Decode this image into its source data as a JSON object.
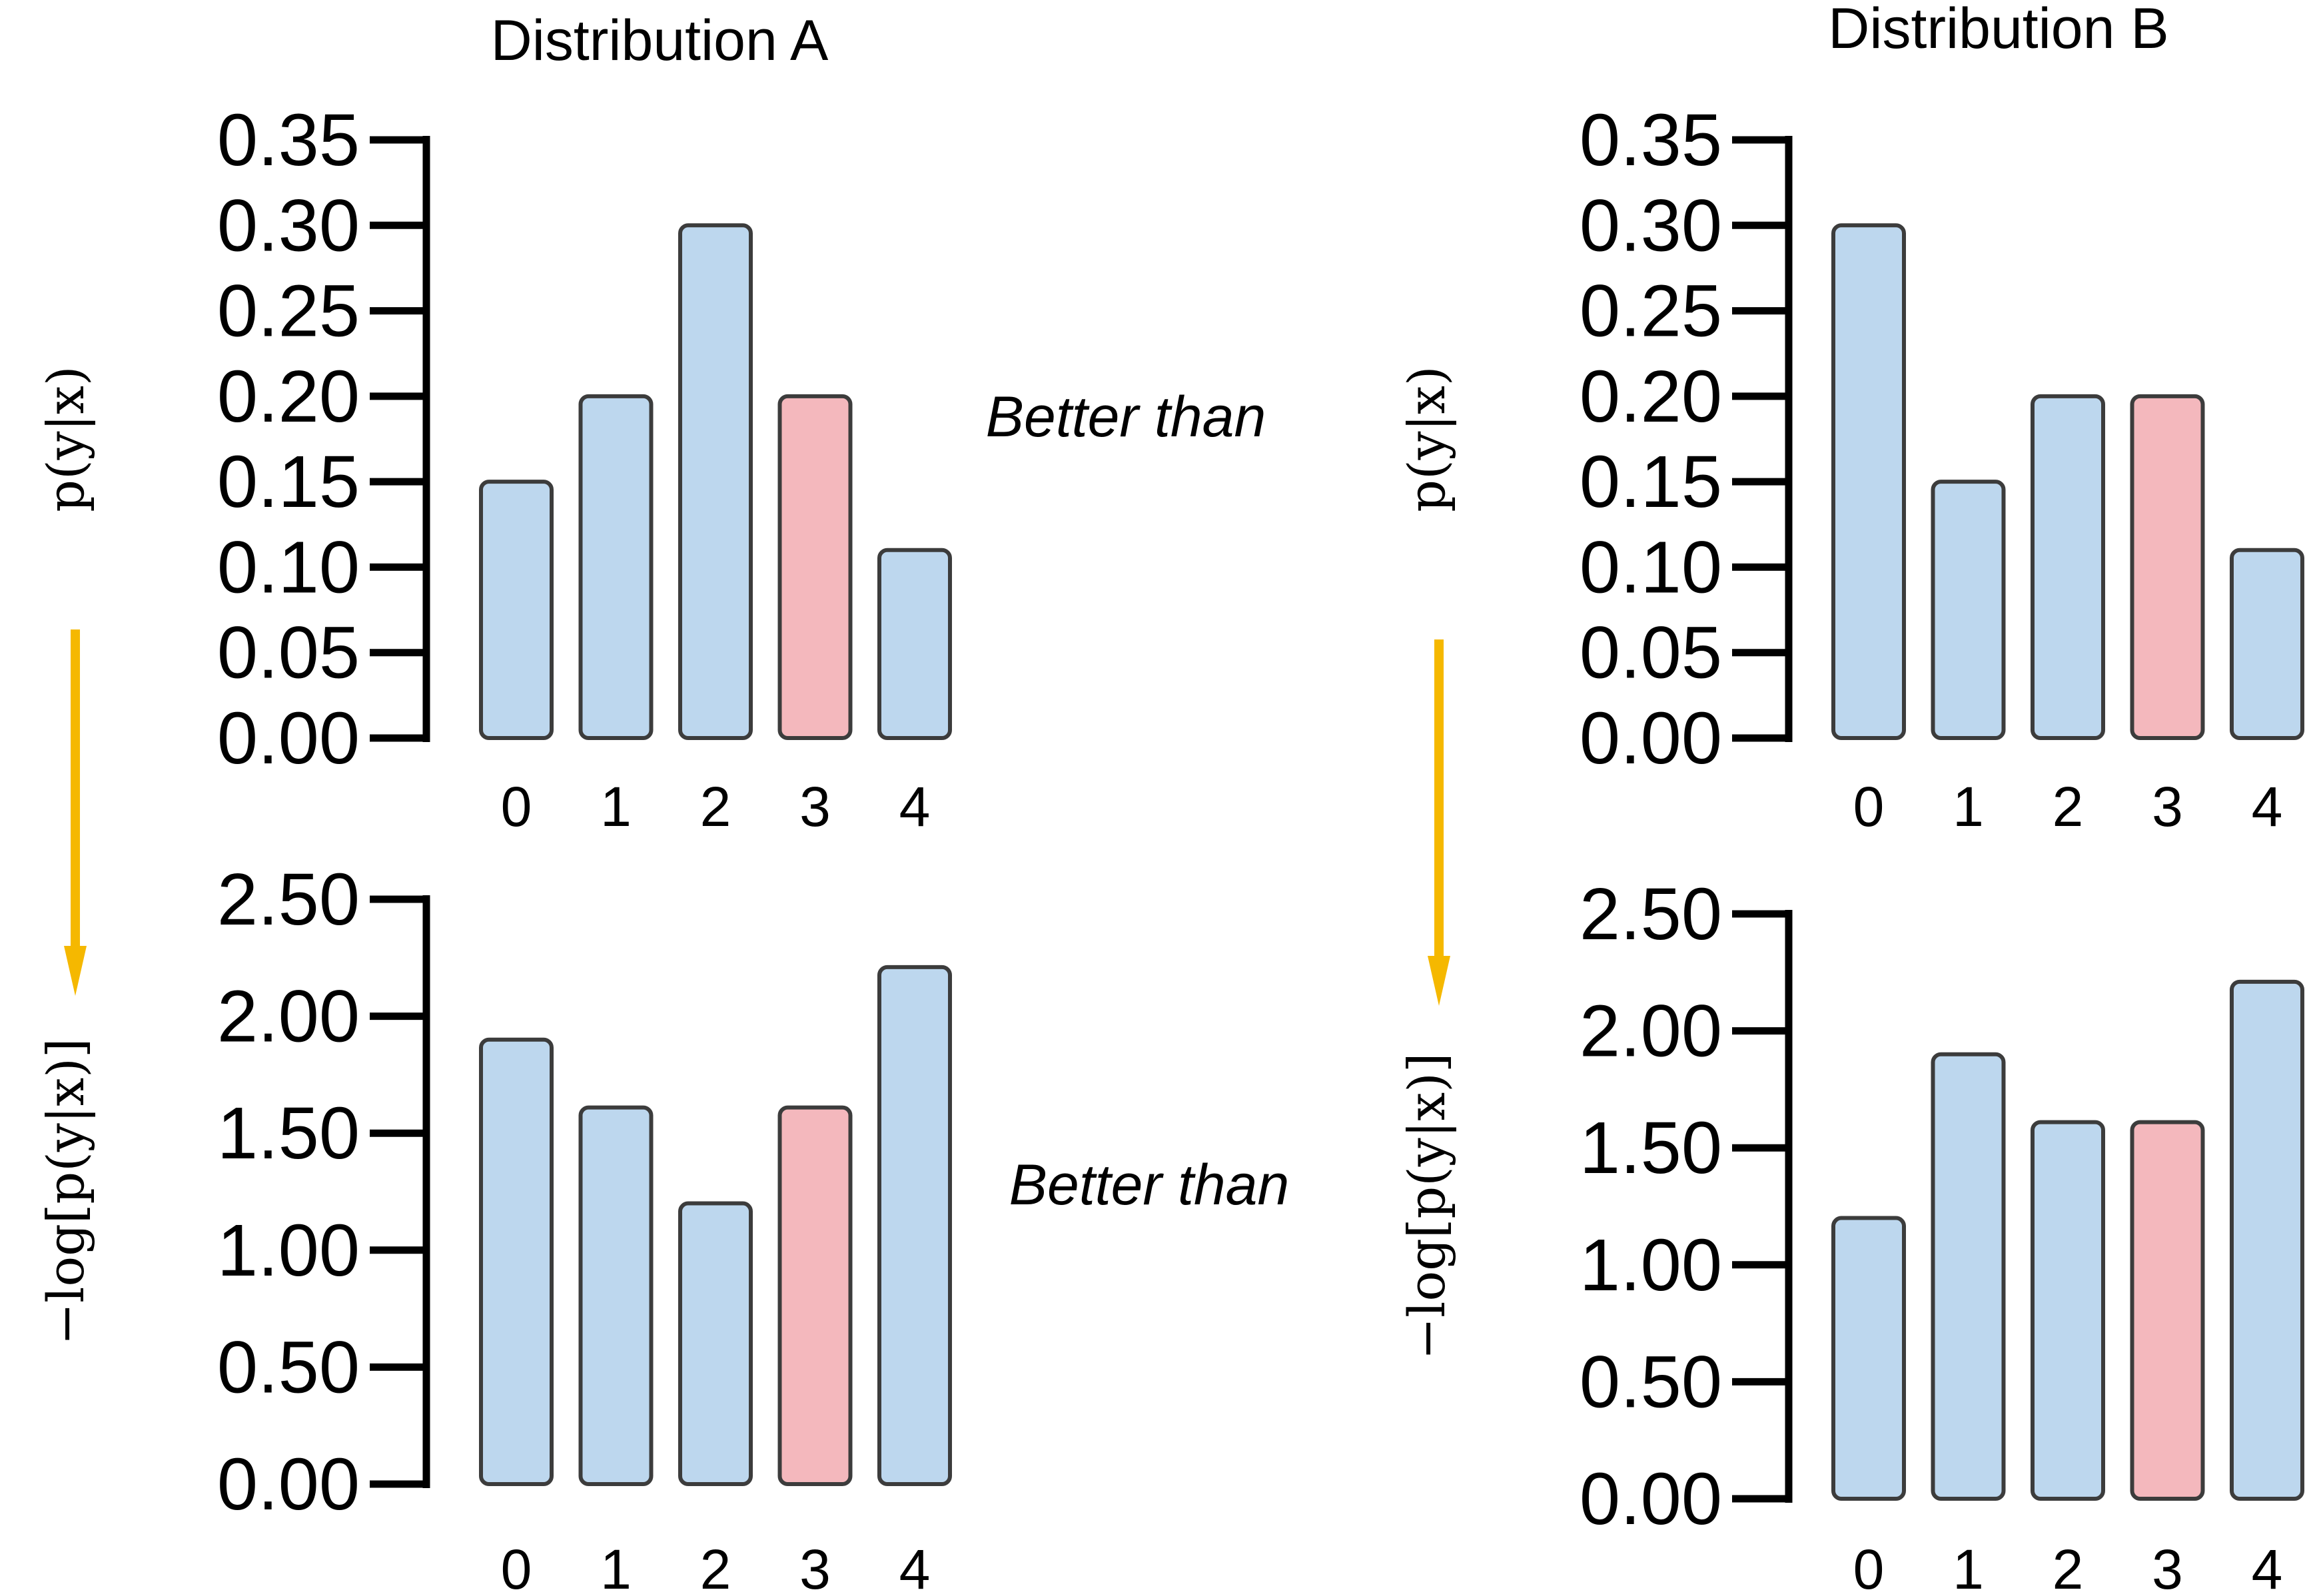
{
  "colors": {
    "bar_default": "#bdd7ee",
    "bar_highlight": "#f4b8bd",
    "bar_stroke": "#3c3c3c",
    "axis": "#000000",
    "arrow": "#f5b800"
  },
  "panels": {
    "A": {
      "title": "Distribution A"
    },
    "B": {
      "title": "Distribution B"
    }
  },
  "annotations": {
    "top": "Better than",
    "bottom": "Better than"
  },
  "chart_data": [
    {
      "id": "A-prob",
      "type": "bar",
      "categories": [
        "0",
        "1",
        "2",
        "3",
        "4"
      ],
      "values": [
        0.15,
        0.2,
        0.3,
        0.2,
        0.11
      ],
      "highlight_index": 3,
      "ylabel": "p(y|x)",
      "ylim": [
        0,
        0.35
      ],
      "yticks": [
        "0.00",
        "0.05",
        "0.10",
        "0.15",
        "0.20",
        "0.25",
        "0.30",
        "0.35"
      ]
    },
    {
      "id": "B-prob",
      "type": "bar",
      "categories": [
        "0",
        "1",
        "2",
        "3",
        "4"
      ],
      "values": [
        0.3,
        0.15,
        0.2,
        0.2,
        0.11
      ],
      "highlight_index": 3,
      "ylabel": "p(y|x)",
      "ylim": [
        0,
        0.35
      ],
      "yticks": [
        "0.00",
        "0.05",
        "0.10",
        "0.15",
        "0.20",
        "0.25",
        "0.30",
        "0.35"
      ]
    },
    {
      "id": "A-nll",
      "type": "bar",
      "categories": [
        "0",
        "1",
        "2",
        "3",
        "4"
      ],
      "values": [
        1.9,
        1.61,
        1.2,
        1.61,
        2.21
      ],
      "highlight_index": 3,
      "ylabel": "−log[p(y|x)]",
      "ylim": [
        0,
        2.5
      ],
      "yticks": [
        "0.00",
        "0.50",
        "1.00",
        "1.50",
        "2.00",
        "2.50"
      ]
    },
    {
      "id": "B-nll",
      "type": "bar",
      "categories": [
        "0",
        "1",
        "2",
        "3",
        "4"
      ],
      "values": [
        1.2,
        1.9,
        1.61,
        1.61,
        2.21
      ],
      "highlight_index": 3,
      "ylabel": "−log[p(y|x)]",
      "ylim": [
        0,
        2.5
      ],
      "yticks": [
        "0.00",
        "0.50",
        "1.00",
        "1.50",
        "2.00",
        "2.50"
      ]
    }
  ]
}
